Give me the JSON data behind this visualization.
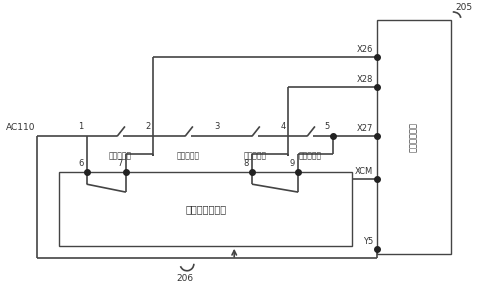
{
  "line_color": "#444444",
  "dot_color": "#222222",
  "text_color": "#333333",
  "fig_width": 5.0,
  "fig_height": 2.85,
  "dpi": 100,
  "ac110": "AC110",
  "label_1": "1",
  "label_2": "2",
  "label_3": "3",
  "label_4": "4",
  "label_5": "5",
  "label_6": "6",
  "label_7": "7",
  "label_8": "8",
  "label_9": "9",
  "sw1_label": "前门轿门锁",
  "sw2_label": "前门厅门锁",
  "sw3_label": "后门轿门锁",
  "sw4_label": "后门厅门锁",
  "box_right_label": "电梯控制主板",
  "box_bottom_label": "门锁短接控制板",
  "x26": "X26",
  "x28": "X28",
  "x27": "X27",
  "xcm": "XCM",
  "y5": "Y5",
  "label_205": "205",
  "label_206": "206"
}
